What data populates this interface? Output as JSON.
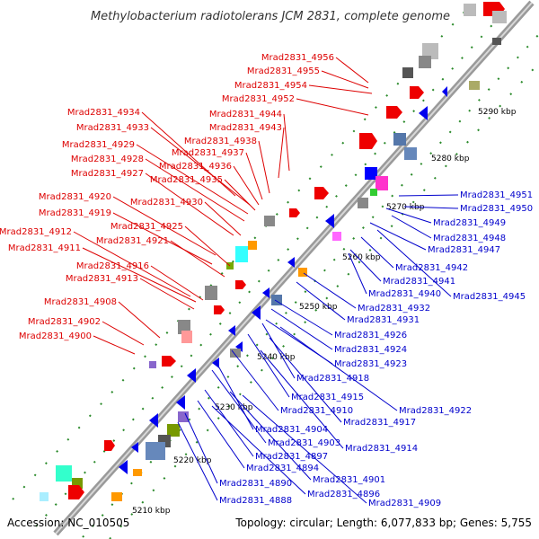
{
  "title": "Methylobacterium radiotolerans JCM 2831, complete genome",
  "footer": {
    "accession": "Accession: NC_010505",
    "summary": "Topology: circular; Length: 6,077,833 bp; Genes: 5,755"
  },
  "scale_labels": [
    "5210 kbp",
    "5220 kbp",
    "5230 kbp",
    "5240 kbp",
    "5250 kbp",
    "5260 kbp",
    "5270 kbp",
    "5280 kbp",
    "5290 kbp"
  ],
  "forward_genes": [
    "Mrad2831_4956",
    "Mrad2831_4955",
    "Mrad2831_4954",
    "Mrad2831_4952",
    "Mrad2831_4944",
    "Mrad2831_4934",
    "Mrad2831_4943",
    "Mrad2831_4933",
    "Mrad2831_4938",
    "Mrad2831_4929",
    "Mrad2831_4937",
    "Mrad2831_4928",
    "Mrad2831_4936",
    "Mrad2831_4927",
    "Mrad2831_4935",
    "Mrad2831_4920",
    "Mrad2831_4930",
    "Mrad2831_4919",
    "Mrad2831_4925",
    "Mrad2831_4912",
    "Mrad2831_4921",
    "Mrad2831_4911",
    "Mrad2831_4916",
    "Mrad2831_4913",
    "Mrad2831_4908",
    "Mrad2831_4902",
    "Mrad2831_4900"
  ],
  "reverse_genes": [
    "Mrad2831_4951",
    "Mrad2831_4950",
    "Mrad2831_4949",
    "Mrad2831_4948",
    "Mrad2831_4947",
    "Mrad2831_4942",
    "Mrad2831_4941",
    "Mrad2831_4940",
    "Mrad2831_4945",
    "Mrad2831_4932",
    "Mrad2831_4931",
    "Mrad2831_4926",
    "Mrad2831_4924",
    "Mrad2831_4923",
    "Mrad2831_4918",
    "Mrad2831_4915",
    "Mrad2831_4922",
    "Mrad2831_4910",
    "Mrad2831_4917",
    "Mrad2831_4904",
    "Mrad2831_4903",
    "Mrad2831_4914",
    "Mrad2831_4897",
    "Mrad2831_4894",
    "Mrad2831_4901",
    "Mrad2831_4890",
    "Mrad2831_4896",
    "Mrad2831_4888",
    "Mrad2831_4909"
  ],
  "colors": {
    "forward_label": "#dd0000",
    "reverse_label": "#0000cc",
    "backbone": "#999999",
    "dots": "#2a8a2a"
  }
}
